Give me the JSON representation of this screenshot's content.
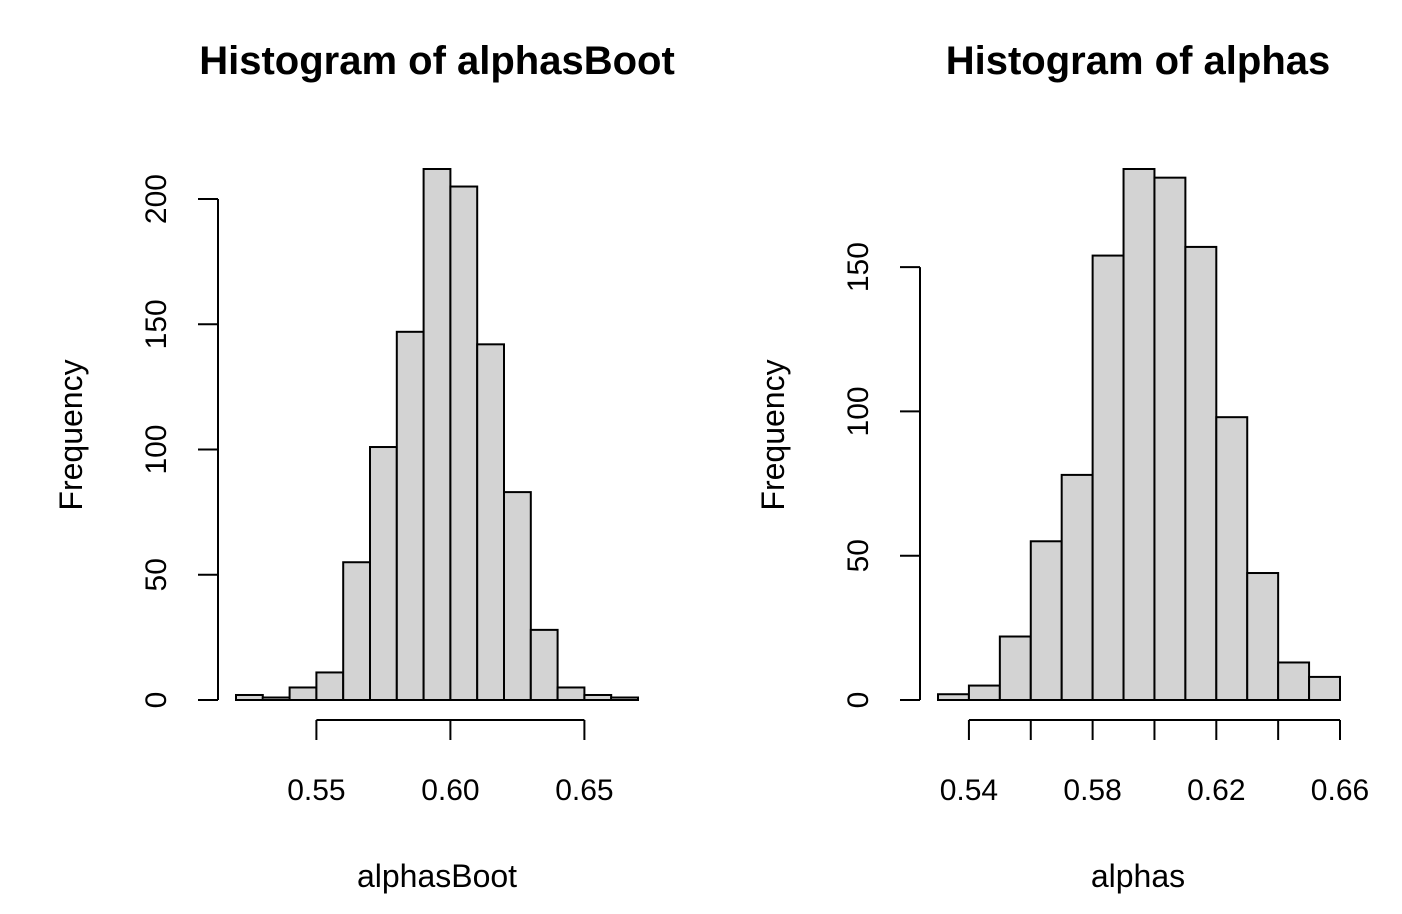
{
  "colors": {
    "bar_fill": "#d3d3d3",
    "bar_stroke": "#000000",
    "background": "#ffffff"
  },
  "chart_data": [
    {
      "type": "bar",
      "title": "Histogram of alphasBoot",
      "xlabel": "alphasBoot",
      "ylabel": "Frequency",
      "bin_edges": [
        0.52,
        0.53,
        0.54,
        0.55,
        0.56,
        0.57,
        0.58,
        0.59,
        0.6,
        0.61,
        0.62,
        0.63,
        0.64,
        0.65,
        0.66,
        0.67
      ],
      "values": [
        2,
        1,
        5,
        11,
        55,
        101,
        147,
        212,
        205,
        142,
        83,
        28,
        5,
        2,
        1
      ],
      "xlim": [
        0.52,
        0.67
      ],
      "ylim": [
        0,
        212
      ],
      "x_ticks": [
        0.55,
        0.6,
        0.65
      ],
      "x_tick_labels": [
        "0.55",
        "0.60",
        "0.65"
      ],
      "y_ticks": [
        0,
        50,
        100,
        150,
        200
      ],
      "y_tick_labels": [
        "0",
        "50",
        "100",
        "150",
        "200"
      ],
      "grid": false
    },
    {
      "type": "bar",
      "title": "Histogram of alphas",
      "xlabel": "alphas",
      "ylabel": "Frequency",
      "bin_edges": [
        0.53,
        0.54,
        0.55,
        0.56,
        0.57,
        0.58,
        0.59,
        0.6,
        0.61,
        0.62,
        0.63,
        0.64,
        0.65,
        0.66
      ],
      "values": [
        2,
        5,
        22,
        55,
        78,
        154,
        184,
        181,
        157,
        98,
        44,
        13,
        8
      ],
      "xlim": [
        0.53,
        0.66
      ],
      "ylim": [
        0,
        184
      ],
      "x_ticks": [
        0.54,
        0.56,
        0.58,
        0.6,
        0.62,
        0.64,
        0.66
      ],
      "x_tick_labels": [
        "0.54",
        "",
        "0.58",
        "",
        "0.62",
        "",
        "0.66"
      ],
      "y_ticks": [
        0,
        50,
        100,
        150
      ],
      "y_tick_labels": [
        "0",
        "50",
        "100",
        "150"
      ],
      "grid": false
    }
  ]
}
